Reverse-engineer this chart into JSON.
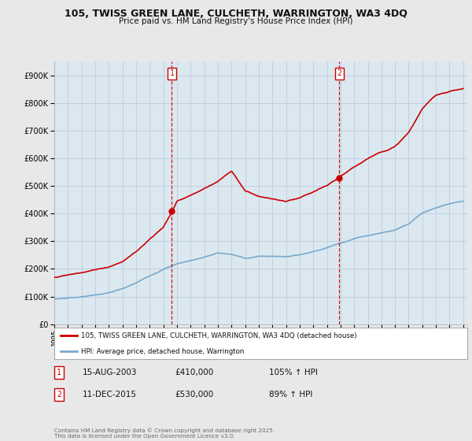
{
  "title": "105, TWISS GREEN LANE, CULCHETH, WARRINGTON, WA3 4DQ",
  "subtitle": "Price paid vs. HM Land Registry's House Price Index (HPI)",
  "background_color": "#e8e8e8",
  "plot_bg_color": "#dce8f0",
  "legend_label_red": "105, TWISS GREEN LANE, CULCHETH, WARRINGTON, WA3 4DQ (detached house)",
  "legend_label_blue": "HPI: Average price, detached house, Warrington",
  "footnote": "Contains HM Land Registry data © Crown copyright and database right 2025.\nThis data is licensed under the Open Government Licence v3.0.",
  "marker1_x_label": "15-AUG-2003",
  "marker1_price": "£410,000",
  "marker1_hpi": "105% ↑ HPI",
  "marker2_x_label": "11-DEC-2015",
  "marker2_price": "£530,000",
  "marker2_hpi": "89% ↑ HPI",
  "ylim": [
    0,
    950000
  ],
  "yticks": [
    0,
    100000,
    200000,
    300000,
    400000,
    500000,
    600000,
    700000,
    800000,
    900000
  ],
  "red_color": "#cc0000",
  "blue_color": "#77aacc",
  "grid_color": "#bbccdd",
  "marker1_year": 2003.625,
  "marker1_value": 410000,
  "marker2_year": 2015.917,
  "marker2_value": 530000
}
